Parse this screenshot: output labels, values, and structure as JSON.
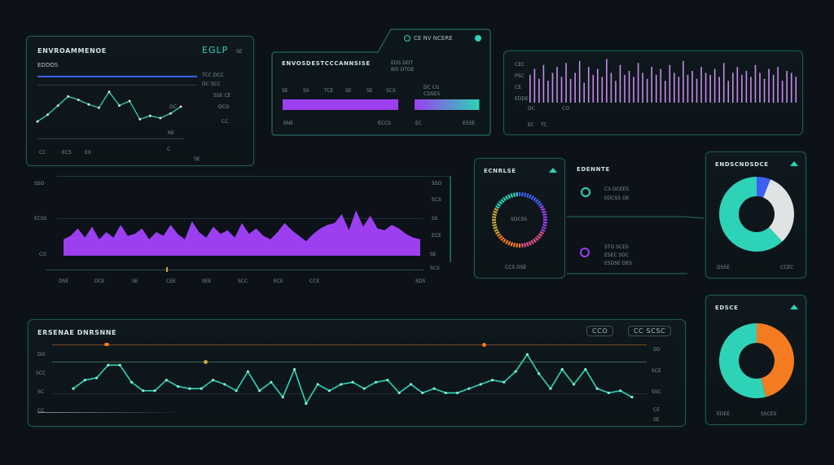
{
  "colors": {
    "accent_teal": "#2ed3b7",
    "accent_purple": "#9b3ff0",
    "accent_orange": "#f47b1f",
    "accent_blue": "#3d5ff2",
    "panel_border": "#1f5a5a",
    "background": "#0c1217"
  },
  "panel1": {
    "title": "ENVROAMMENOE",
    "badge": "EGLP",
    "badge_suffix": "SE",
    "sub_label": "EDDOS",
    "bottom_labels": [
      "CC",
      "ECS",
      "EX",
      "C",
      "SE"
    ],
    "right_labels": [
      "TCC DCC",
      "DC SCC",
      "SSE CE",
      "DC",
      "DCO",
      "CC",
      "RE"
    ],
    "chart_data": {
      "type": "line",
      "series": [
        {
          "values": [
            12,
            18,
            26,
            34,
            31,
            27,
            24,
            38,
            26,
            30,
            14,
            17,
            15,
            19,
            25
          ]
        }
      ]
    }
  },
  "panel2": {
    "title": "ENVOSDESTCCCANNSISE",
    "header_tab": "CE NV NCERE",
    "header_stats": [
      "EDS DDT",
      "BIS DTOE"
    ],
    "upper_labels": [
      "SE",
      "SS",
      "TCE",
      "SE",
      "SE",
      "SCS",
      "DC CG",
      "CDSES"
    ],
    "bar_labels": [
      "ENE",
      "ECCS",
      "EC",
      "ESSE"
    ],
    "chart_data": {
      "type": "bar",
      "series": [
        {
          "values": [
            100,
            56
          ]
        }
      ]
    }
  },
  "panel3": {
    "left_labels": [
      "CEC",
      "PSC",
      "CE",
      "EDDE"
    ],
    "bottom_labels": [
      "DC",
      "CO",
      "EC",
      "TC"
    ],
    "chart_data": {
      "type": "bar",
      "values": [
        28,
        34,
        24,
        38,
        22,
        30,
        36,
        26,
        40,
        24,
        30,
        42,
        20,
        36,
        28,
        34,
        26,
        44,
        30,
        22,
        38,
        28,
        32,
        26,
        40,
        30,
        24,
        36,
        28,
        34,
        22,
        38,
        30,
        26,
        42,
        28,
        32,
        24,
        36,
        30,
        28,
        34,
        26,
        40,
        22,
        30,
        36,
        28,
        32,
        26,
        38,
        30,
        24,
        34,
        28,
        36,
        22,
        32,
        30,
        26
      ]
    }
  },
  "area_chart": {
    "y_labels_left": [
      "SSO",
      "ECSS",
      "CO"
    ],
    "y_labels_right": [
      "SSO",
      "ECS",
      "SS",
      "ECE",
      "SE",
      "SCS"
    ],
    "x_labels": [
      "DSE",
      "DCE",
      "SE",
      "CEE",
      "SEE",
      "SCC",
      "ECE",
      "CCE",
      "SDS"
    ],
    "chart_data": {
      "type": "area",
      "values": [
        18,
        22,
        30,
        20,
        32,
        18,
        26,
        20,
        34,
        22,
        24,
        30,
        18,
        26,
        22,
        34,
        24,
        18,
        38,
        26,
        20,
        32,
        24,
        28,
        20,
        36,
        24,
        30,
        22,
        18,
        26,
        36,
        28,
        22,
        16,
        24,
        30,
        34,
        36,
        46,
        28,
        50,
        32,
        44,
        30,
        28,
        34,
        30,
        24,
        20,
        18
      ]
    }
  },
  "donut1": {
    "title": "ECNRLSE",
    "center_label": "SDCSS",
    "bottom_label": "CCS DSE",
    "chart_data": {
      "type": "pie",
      "colors": [
        "#3d5ff2",
        "#9b3ff0",
        "#e14f8a",
        "#f47b1f",
        "#c9a83a",
        "#2ed3b7"
      ]
    }
  },
  "status_list": {
    "title": "EDENNTE",
    "row1": [
      "CS DCEES",
      "EDCSS DE"
    ],
    "row2": [
      "STO SCES",
      "ESEC SDC",
      "ESDSE DES"
    ]
  },
  "donut_panel_top": {
    "title": "ENDSCNDSDCE",
    "legend": [
      "DSSE",
      "CCEC"
    ],
    "chart_data": {
      "type": "pie",
      "values": [
        6,
        32,
        62
      ],
      "colors": [
        "#3d5ff2",
        "#e0e3e4",
        "#2ed3b7"
      ]
    }
  },
  "donut_panel_bottom": {
    "title": "EDSCE",
    "legend": [
      "EDEE",
      "SSCES"
    ],
    "chart_data": {
      "type": "pie",
      "values": [
        46,
        54
      ],
      "colors": [
        "#f47b1f",
        "#2ed3b7"
      ]
    }
  },
  "bottom_panel": {
    "title": "ERSENAE DNRSNNE",
    "chip1": "CCO",
    "chip2": "CC SCSC",
    "y_labels_left": [
      "DO",
      "SCC",
      "SC",
      "CC"
    ],
    "y_labels_right": [
      "SO",
      "SCE",
      "SSC",
      "CE",
      "SE"
    ],
    "chart_data": {
      "type": "line",
      "series": [
        {
          "values": [
            22,
            30,
            32,
            44,
            44,
            28,
            20,
            20,
            30,
            24,
            22,
            22,
            30,
            26,
            20,
            38,
            20,
            28,
            14,
            40,
            8,
            26,
            20,
            26,
            28,
            22,
            28,
            30,
            18,
            26,
            18,
            22,
            18,
            18,
            22,
            26,
            30,
            28,
            38,
            54,
            36,
            22,
            40,
            26,
            40,
            22,
            18,
            20,
            14
          ]
        }
      ]
    }
  }
}
